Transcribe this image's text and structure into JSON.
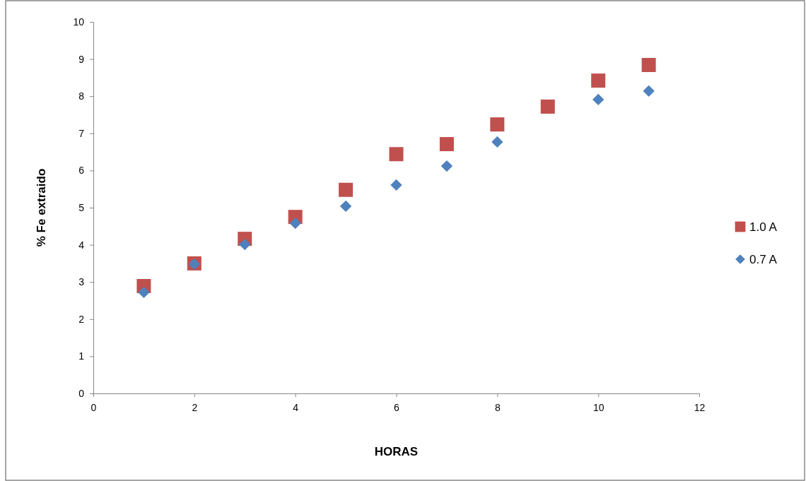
{
  "chart_data": {
    "type": "scatter",
    "xlabel": "HORAS",
    "ylabel": "% Fe extraido",
    "x": [
      1,
      2,
      3,
      4,
      5,
      6,
      7,
      8,
      9,
      10,
      11
    ],
    "xlim": [
      0,
      12
    ],
    "xticks": [
      0,
      2,
      4,
      6,
      8,
      10,
      12
    ],
    "ylim": [
      0,
      10
    ],
    "yticks": [
      0,
      1,
      2,
      3,
      4,
      5,
      6,
      7,
      8,
      9,
      10
    ],
    "grid": false,
    "legend": "right",
    "series": [
      {
        "name": "1.0 A",
        "color": "#c0504d",
        "marker": "square",
        "values": [
          2.89,
          3.5,
          4.16,
          4.75,
          5.48,
          6.44,
          6.71,
          7.24,
          7.72,
          8.42,
          8.84
        ]
      },
      {
        "name": "0.7 A",
        "color": "#4f81bd",
        "marker": "diamond",
        "values": [
          2.72,
          3.48,
          4.01,
          4.58,
          5.04,
          5.61,
          6.12,
          6.77,
          null,
          7.91,
          8.14
        ]
      }
    ]
  }
}
